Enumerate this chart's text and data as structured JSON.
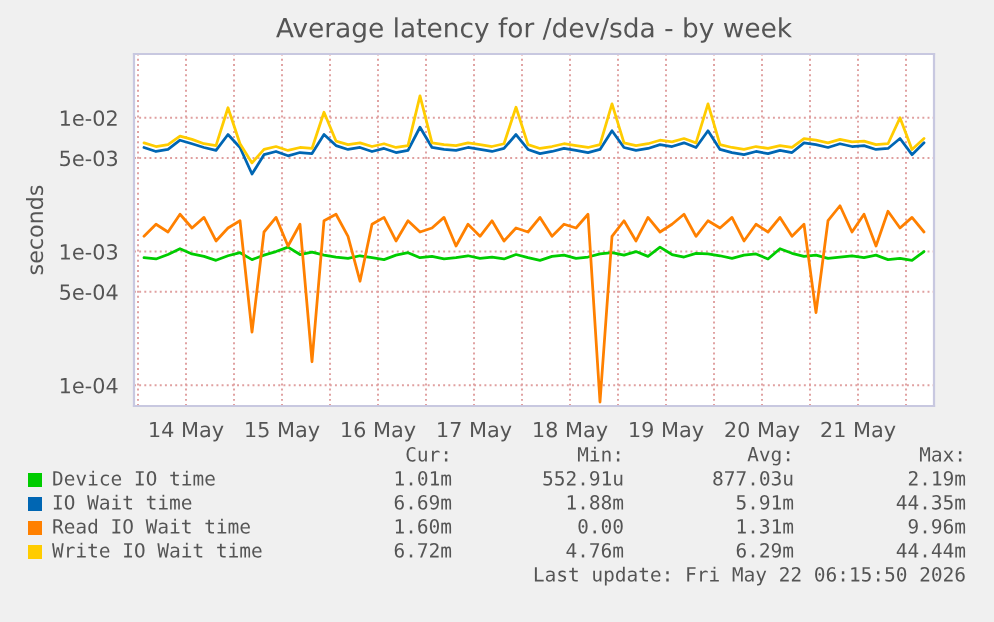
{
  "chart_data": {
    "type": "line",
    "title": "Average latency for /dev/sda - by week",
    "ylabel": "seconds",
    "log": "y",
    "x": [
      "2026-05-14T01:30",
      "2026-05-14T04:30",
      "2026-05-14T07:30",
      "2026-05-14T10:30",
      "2026-05-14T13:30",
      "2026-05-14T16:30",
      "2026-05-14T19:30",
      "2026-05-14T22:30",
      "2026-05-15T01:30",
      "2026-05-15T04:30",
      "2026-05-15T07:30",
      "2026-05-15T10:30",
      "2026-05-15T13:30",
      "2026-05-15T16:30",
      "2026-05-15T19:30",
      "2026-05-15T22:30",
      "2026-05-16T01:30",
      "2026-05-16T04:30",
      "2026-05-16T07:30",
      "2026-05-16T10:30",
      "2026-05-16T13:30",
      "2026-05-16T16:30",
      "2026-05-16T19:30",
      "2026-05-16T22:30",
      "2026-05-17T01:30",
      "2026-05-17T04:30",
      "2026-05-17T07:30",
      "2026-05-17T10:30",
      "2026-05-17T13:30",
      "2026-05-17T16:30",
      "2026-05-17T19:30",
      "2026-05-17T22:30",
      "2026-05-18T01:30",
      "2026-05-18T04:30",
      "2026-05-18T07:30",
      "2026-05-18T10:30",
      "2026-05-18T13:30",
      "2026-05-18T16:30",
      "2026-05-18T19:30",
      "2026-05-18T22:30",
      "2026-05-19T01:30",
      "2026-05-19T04:30",
      "2026-05-19T07:30",
      "2026-05-19T10:30",
      "2026-05-19T13:30",
      "2026-05-19T16:30",
      "2026-05-19T19:30",
      "2026-05-19T22:30",
      "2026-05-20T01:30",
      "2026-05-20T04:30",
      "2026-05-20T07:30",
      "2026-05-20T10:30",
      "2026-05-20T13:30",
      "2026-05-20T16:30",
      "2026-05-20T19:30",
      "2026-05-20T22:30",
      "2026-05-21T01:30",
      "2026-05-21T04:30",
      "2026-05-21T07:30",
      "2026-05-21T10:30",
      "2026-05-21T13:30",
      "2026-05-21T16:30",
      "2026-05-21T19:30",
      "2026-05-21T22:30",
      "2026-05-22T01:30",
      "2026-05-22T04:30"
    ],
    "series": [
      {
        "name": "Device IO time",
        "color": "#00cc00",
        "values": [
          0.0009,
          0.00088,
          0.00095,
          0.00105,
          0.00096,
          0.00092,
          0.00086,
          0.00093,
          0.00098,
          0.00087,
          0.00094,
          0.001,
          0.00108,
          0.00095,
          0.00099,
          0.00094,
          0.00091,
          0.00089,
          0.00093,
          0.0009,
          0.00087,
          0.00094,
          0.00098,
          0.0009,
          0.00092,
          0.00088,
          0.0009,
          0.00093,
          0.00089,
          0.00091,
          0.00088,
          0.00095,
          0.0009,
          0.00086,
          0.00092,
          0.00094,
          0.00089,
          0.00091,
          0.00096,
          0.00098,
          0.00094,
          0.001,
          0.00092,
          0.00108,
          0.00095,
          0.00091,
          0.00097,
          0.00096,
          0.00093,
          0.00089,
          0.00094,
          0.00096,
          0.00088,
          0.00105,
          0.00097,
          0.00092,
          0.00094,
          0.00089,
          0.00091,
          0.00093,
          0.0009,
          0.00094,
          0.00087,
          0.00089,
          0.00086,
          0.001
        ]
      },
      {
        "name": "IO Wait time",
        "color": "#0066b3",
        "values": [
          0.006,
          0.0056,
          0.0058,
          0.0068,
          0.0064,
          0.006,
          0.0057,
          0.0075,
          0.006,
          0.0038,
          0.0053,
          0.0056,
          0.0052,
          0.0055,
          0.0054,
          0.0075,
          0.0062,
          0.0058,
          0.006,
          0.0056,
          0.0059,
          0.0055,
          0.0057,
          0.0085,
          0.006,
          0.0058,
          0.0057,
          0.006,
          0.0058,
          0.0056,
          0.0059,
          0.0075,
          0.0058,
          0.0054,
          0.0056,
          0.0059,
          0.0057,
          0.0055,
          0.0058,
          0.008,
          0.006,
          0.0057,
          0.0059,
          0.0063,
          0.0061,
          0.0065,
          0.006,
          0.008,
          0.0058,
          0.0055,
          0.0053,
          0.0056,
          0.0054,
          0.0057,
          0.0055,
          0.0065,
          0.0063,
          0.006,
          0.0064,
          0.0061,
          0.0062,
          0.0058,
          0.0059,
          0.007,
          0.0053,
          0.0065
        ]
      },
      {
        "name": "Read IO Wait time",
        "color": "#ff8000",
        "values": [
          0.0013,
          0.0016,
          0.0014,
          0.0019,
          0.0015,
          0.0018,
          0.0012,
          0.0015,
          0.0017,
          0.00025,
          0.0014,
          0.0018,
          0.0011,
          0.0016,
          0.00015,
          0.0017,
          0.0019,
          0.0013,
          0.0006,
          0.0016,
          0.0018,
          0.0012,
          0.0017,
          0.0014,
          0.0015,
          0.0018,
          0.0011,
          0.0016,
          0.0013,
          0.0017,
          0.0012,
          0.0015,
          0.0014,
          0.0018,
          0.0013,
          0.0016,
          0.0015,
          0.0019,
          7.5e-05,
          0.0013,
          0.0017,
          0.0012,
          0.0018,
          0.0014,
          0.0016,
          0.0019,
          0.0013,
          0.0017,
          0.0015,
          0.0018,
          0.0012,
          0.0016,
          0.0014,
          0.0018,
          0.0013,
          0.0016,
          0.00035,
          0.0017,
          0.0022,
          0.0014,
          0.0019,
          0.0011,
          0.002,
          0.0015,
          0.0018,
          0.0014
        ]
      },
      {
        "name": "Write IO Wait time",
        "color": "#ffcc00",
        "values": [
          0.0065,
          0.0061,
          0.0063,
          0.0073,
          0.0069,
          0.0064,
          0.0062,
          0.0119,
          0.0064,
          0.0046,
          0.0058,
          0.0061,
          0.0057,
          0.006,
          0.0059,
          0.011,
          0.0067,
          0.0063,
          0.0065,
          0.0061,
          0.0064,
          0.006,
          0.0062,
          0.0146,
          0.0065,
          0.0063,
          0.0062,
          0.0065,
          0.0063,
          0.0061,
          0.0064,
          0.012,
          0.0063,
          0.0059,
          0.0061,
          0.0064,
          0.0062,
          0.006,
          0.0063,
          0.0127,
          0.0065,
          0.0062,
          0.0064,
          0.0068,
          0.0066,
          0.007,
          0.0065,
          0.0127,
          0.0063,
          0.006,
          0.0058,
          0.0061,
          0.0059,
          0.0062,
          0.006,
          0.007,
          0.0068,
          0.0065,
          0.0069,
          0.0066,
          0.0067,
          0.0063,
          0.0064,
          0.01,
          0.0058,
          0.007
        ]
      }
    ],
    "xlim": [
      "2026-05-13T23:00",
      "2026-05-22T07:00"
    ],
    "xticks": [
      {
        "value": "2026-05-14T00:00",
        "label": null
      },
      {
        "value": "2026-05-14T12:00",
        "label": "14 May"
      },
      {
        "value": "2026-05-15T00:00",
        "label": null
      },
      {
        "value": "2026-05-15T12:00",
        "label": "15 May"
      },
      {
        "value": "2026-05-16T00:00",
        "label": null
      },
      {
        "value": "2026-05-16T12:00",
        "label": "16 May"
      },
      {
        "value": "2026-05-17T00:00",
        "label": null
      },
      {
        "value": "2026-05-17T12:00",
        "label": "17 May"
      },
      {
        "value": "2026-05-18T00:00",
        "label": null
      },
      {
        "value": "2026-05-18T12:00",
        "label": "18 May"
      },
      {
        "value": "2026-05-19T00:00",
        "label": null
      },
      {
        "value": "2026-05-19T12:00",
        "label": "19 May"
      },
      {
        "value": "2026-05-20T00:00",
        "label": null
      },
      {
        "value": "2026-05-20T12:00",
        "label": "20 May"
      },
      {
        "value": "2026-05-21T00:00",
        "label": null
      },
      {
        "value": "2026-05-21T12:00",
        "label": "21 May"
      },
      {
        "value": "2026-05-22T00:00",
        "label": null
      }
    ],
    "ylim": [
      7e-05,
      0.03
    ],
    "yticks": [
      {
        "value": 0.0001,
        "label": "1e-04"
      },
      {
        "value": 0.0005,
        "label": "5e-04"
      },
      {
        "value": 0.001,
        "label": "1e-03"
      },
      {
        "value": 0.005,
        "label": "5e-03"
      },
      {
        "value": 0.01,
        "label": "1e-02"
      }
    ],
    "grid": true,
    "legend": "bottom",
    "marker": "none",
    "line_style": "solid",
    "annotations": [
      "Cur:",
      "Min:",
      "Avg:",
      "Max:",
      "1.01m",
      "552.91u",
      "877.03u",
      "2.19m",
      "6.69m",
      "1.88m",
      "5.91m",
      "44.35m",
      "1.60m",
      "0.00",
      "1.31m",
      "9.96m",
      "6.72m",
      "4.76m",
      "6.29m",
      "44.44m",
      "Last update: Fri May 22 06:15:50 2026"
    ]
  }
}
